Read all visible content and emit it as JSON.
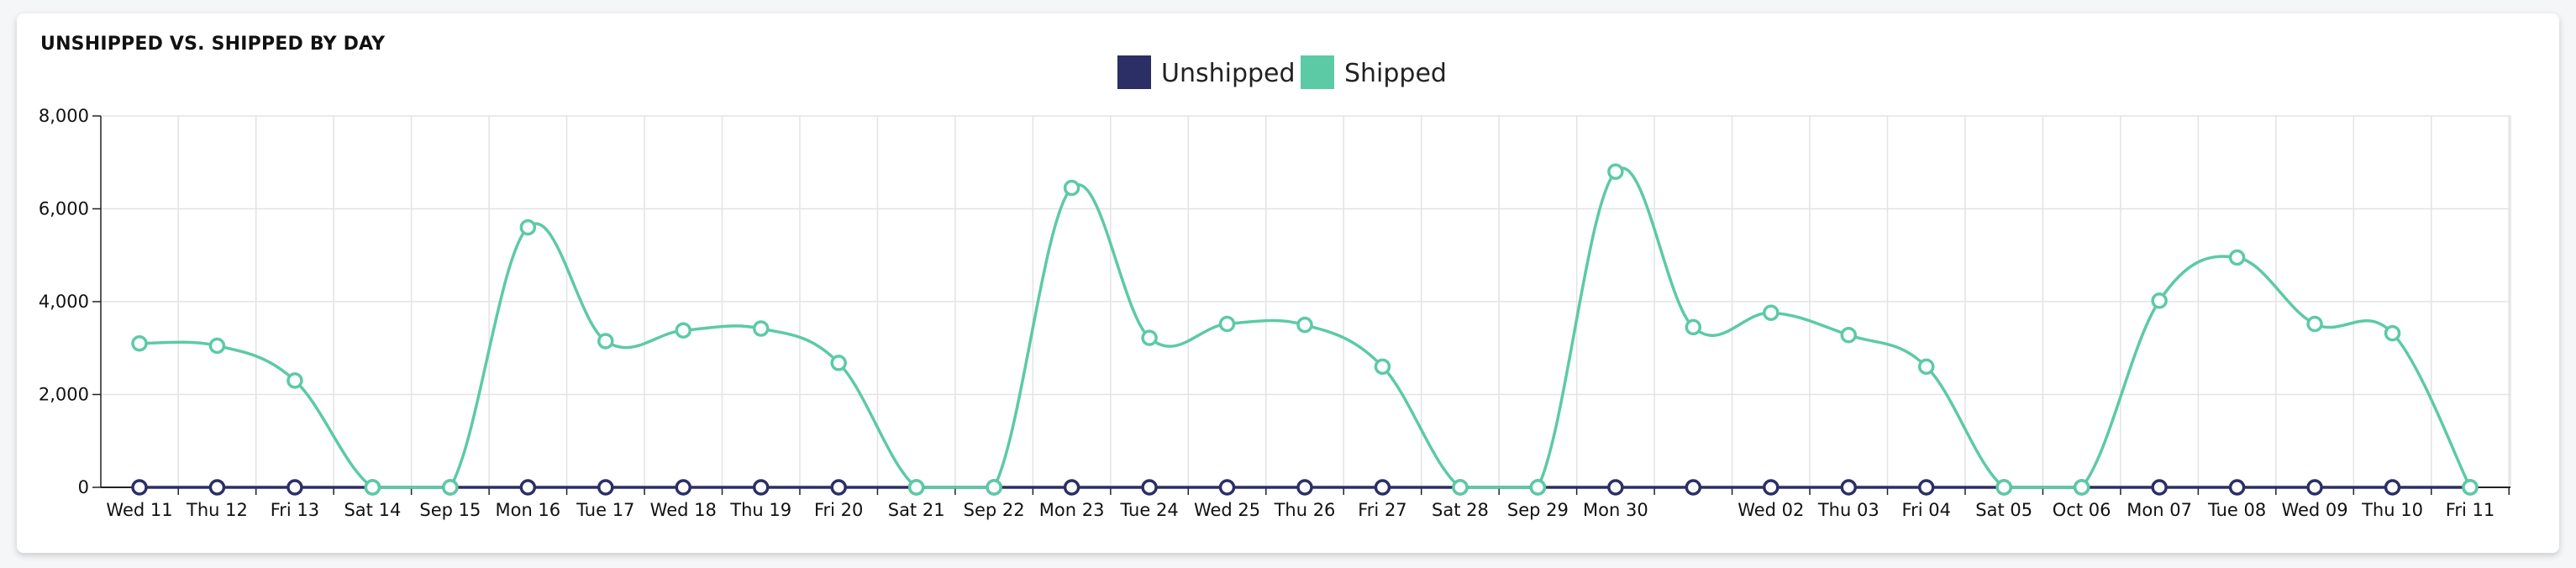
{
  "chart_data": {
    "type": "line",
    "title": "UNSHIPPED VS. SHIPPED BY DAY",
    "categories": [
      "Wed 11",
      "Thu 12",
      "Fri 13",
      "Sat 14",
      "Sep 15",
      "Mon 16",
      "Tue 17",
      "Wed 18",
      "Thu 19",
      "Fri 20",
      "Sat 21",
      "Sep 22",
      "Mon 23",
      "Tue 24",
      "Wed 25",
      "Thu 26",
      "Fri 27",
      "Sat 28",
      "Sep 29",
      "Mon 30",
      "",
      "Wed 02",
      "Thu 03",
      "Fri 04",
      "Sat 05",
      "Oct 06",
      "Mon 07",
      "Tue 08",
      "Wed 09",
      "Thu 10",
      "Fri 11"
    ],
    "series": [
      {
        "name": "Unshipped",
        "color": "#2b2f66",
        "values": [
          0,
          0,
          0,
          0,
          0,
          0,
          0,
          0,
          0,
          0,
          0,
          0,
          0,
          0,
          0,
          0,
          0,
          0,
          0,
          0,
          0,
          0,
          0,
          0,
          0,
          0,
          0,
          0,
          0,
          0,
          0
        ]
      },
      {
        "name": "Shipped",
        "color": "#5ccaa5",
        "values": [
          3100,
          3050,
          2300,
          0,
          0,
          5600,
          3150,
          3380,
          3420,
          2680,
          0,
          0,
          6450,
          3220,
          3520,
          3500,
          2600,
          0,
          0,
          6800,
          3450,
          3760,
          3280,
          2600,
          0,
          0,
          4020,
          4950,
          3520,
          3320,
          0
        ]
      }
    ],
    "ylim": [
      0,
      8000
    ],
    "yticks": [
      0,
      2000,
      4000,
      6000,
      8000
    ],
    "ytick_labels": [
      "0",
      "2,000",
      "4,000",
      "6,000",
      "8,000"
    ],
    "xlabel": "",
    "ylabel": "",
    "grid": true,
    "legend_position": "top-center"
  }
}
